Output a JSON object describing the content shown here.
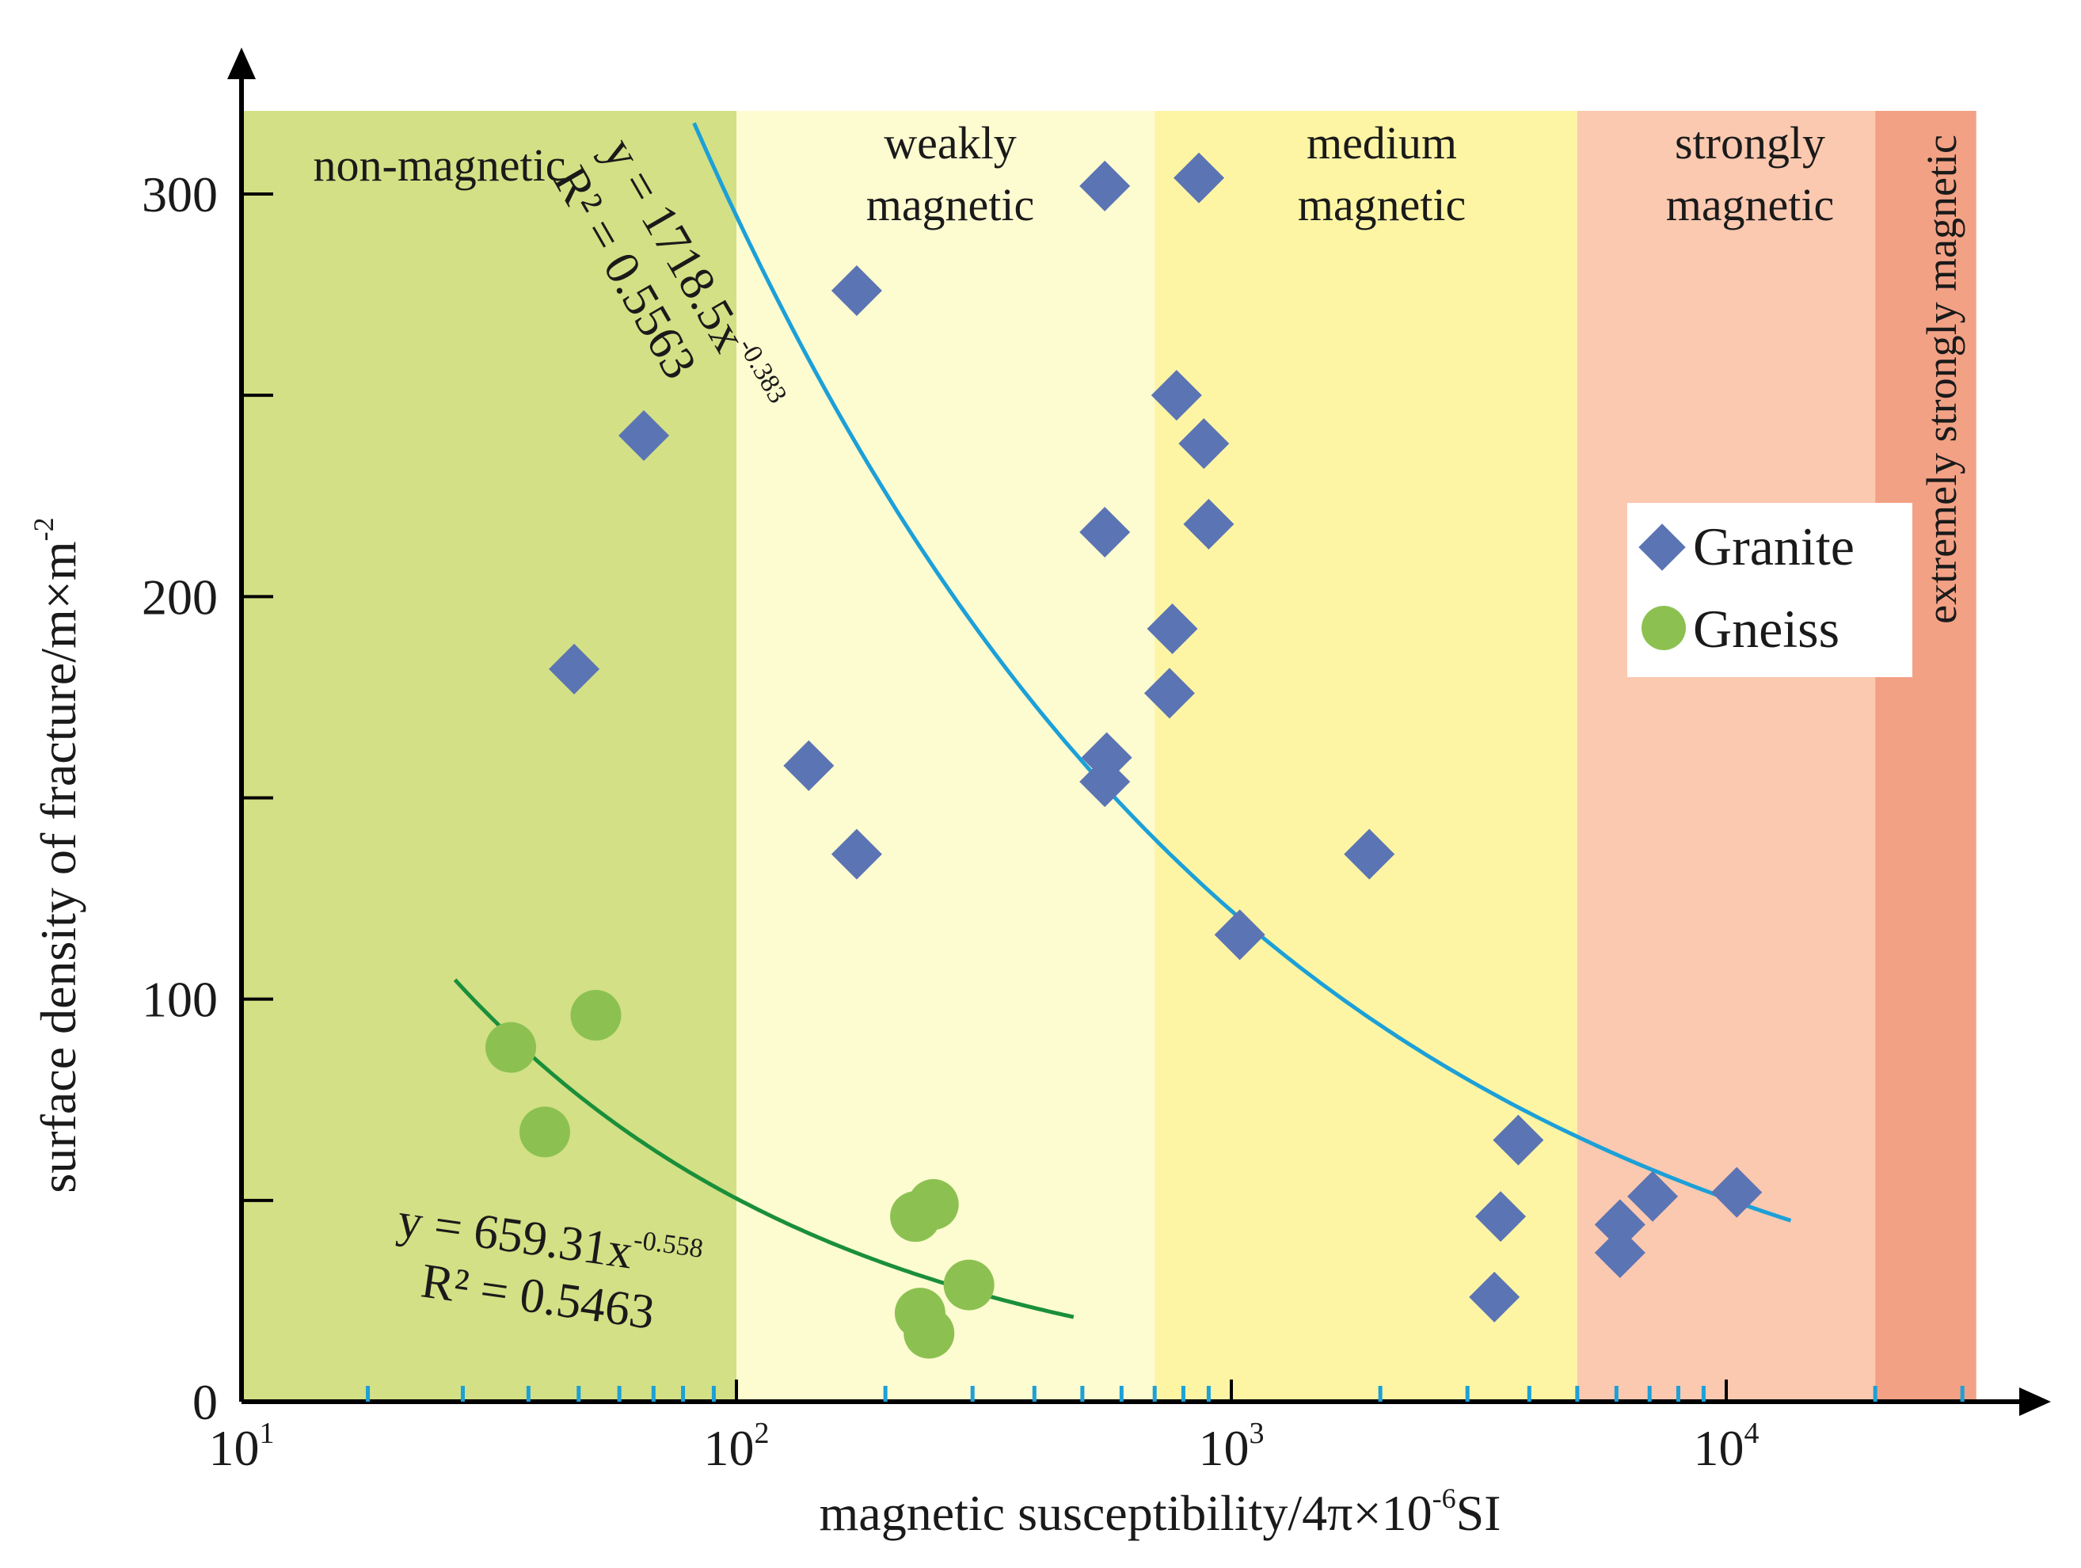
{
  "colors": {
    "zone_non": "#d3e085",
    "zone_weak": "#fdfbd0",
    "zone_medium": "#fdf5a4",
    "zone_strong": "#fbc9b0",
    "zone_extreme": "#f2a185",
    "granite": "#5b74b3",
    "gneiss": "#8cc152",
    "fit_granite": "#1ca0d7",
    "fit_gneiss": "#1a8f3a",
    "axis": "#000000",
    "minor_tick": "#1ca0d7"
  },
  "chart_data": {
    "type": "scatter",
    "xscale": "log",
    "xlim": [
      10,
      32000
    ],
    "ylim": [
      0,
      320
    ],
    "xlabel": "magnetic susceptibility/4π×10",
    "xlabel_exp": "-6",
    "xlabel_unit": "SI",
    "ylabel": "surface density of fracture/m×m",
    "ylabel_exp": "-2",
    "x_ticks": [
      {
        "value": 10,
        "base": "10",
        "exp": "1"
      },
      {
        "value": 100,
        "base": "10",
        "exp": "2"
      },
      {
        "value": 1000,
        "base": "10",
        "exp": "3"
      },
      {
        "value": 10000,
        "base": "10",
        "exp": "4"
      }
    ],
    "x_minor_ticks": [
      18,
      28,
      38,
      48,
      58,
      68,
      78,
      90,
      200,
      300,
      400,
      500,
      600,
      700,
      800,
      900,
      2000,
      3000,
      4000,
      5000,
      6000,
      7000,
      8000,
      9000,
      20000,
      30000
    ],
    "y_ticks": [
      {
        "value": 0,
        "label": "0"
      },
      {
        "value": 50,
        "label": ""
      },
      {
        "value": 100,
        "label": "100"
      },
      {
        "value": 150,
        "label": ""
      },
      {
        "value": 200,
        "label": "200"
      },
      {
        "value": 250,
        "label": ""
      },
      {
        "value": 300,
        "label": "300"
      }
    ],
    "zones": [
      {
        "name": "non-magnetic",
        "from": 10,
        "to": 100,
        "color_key": "zone_non",
        "label_lines": [
          "non-magnetic"
        ]
      },
      {
        "name": "weakly magnetic",
        "from": 100,
        "to": 700,
        "color_key": "zone_weak",
        "label_lines": [
          "weakly",
          "magnetic"
        ]
      },
      {
        "name": "medium magnetic",
        "from": 700,
        "to": 5000,
        "color_key": "zone_medium",
        "label_lines": [
          "medium",
          "magnetic"
        ]
      },
      {
        "name": "strongly magnetic",
        "from": 5000,
        "to": 20000,
        "color_key": "zone_strong",
        "label_lines": [
          "strongly",
          "magnetic"
        ]
      },
      {
        "name": "extremely strongly magnetic",
        "from": 20000,
        "to": 32000,
        "color_key": "zone_extreme",
        "label_lines": [
          "extremely strongly magnetic"
        ]
      }
    ],
    "series": [
      {
        "name": "Granite",
        "marker": "diamond",
        "color_key": "granite",
        "points": [
          {
            "x": 47,
            "y": 182
          },
          {
            "x": 65,
            "y": 240
          },
          {
            "x": 140,
            "y": 158
          },
          {
            "x": 175,
            "y": 276
          },
          {
            "x": 175,
            "y": 136
          },
          {
            "x": 555,
            "y": 302
          },
          {
            "x": 555,
            "y": 216
          },
          {
            "x": 560,
            "y": 160
          },
          {
            "x": 555,
            "y": 154
          },
          {
            "x": 860,
            "y": 304
          },
          {
            "x": 775,
            "y": 250
          },
          {
            "x": 880,
            "y": 238
          },
          {
            "x": 900,
            "y": 218
          },
          {
            "x": 760,
            "y": 192
          },
          {
            "x": 750,
            "y": 176
          },
          {
            "x": 1900,
            "y": 136
          },
          {
            "x": 1040,
            "y": 116
          },
          {
            "x": 3800,
            "y": 65
          },
          {
            "x": 3500,
            "y": 46
          },
          {
            "x": 3400,
            "y": 26
          },
          {
            "x": 6100,
            "y": 44
          },
          {
            "x": 6100,
            "y": 37
          },
          {
            "x": 7100,
            "y": 51
          },
          {
            "x": 10500,
            "y": 52
          }
        ]
      },
      {
        "name": "Gneiss",
        "marker": "circle",
        "color_key": "gneiss",
        "points": [
          {
            "x": 35,
            "y": 88
          },
          {
            "x": 52,
            "y": 96
          },
          {
            "x": 41,
            "y": 67
          },
          {
            "x": 230,
            "y": 46
          },
          {
            "x": 250,
            "y": 49
          },
          {
            "x": 295,
            "y": 29
          },
          {
            "x": 235,
            "y": 22
          },
          {
            "x": 245,
            "y": 17
          }
        ]
      }
    ],
    "fits": [
      {
        "series": "Granite",
        "a": 1718.5,
        "b": -0.383,
        "x_range": [
          78,
          13500
        ],
        "r2": "0.5563",
        "color_key": "fit_granite"
      },
      {
        "series": "Gneiss",
        "a": 659.31,
        "b": -0.558,
        "x_range": [
          27,
          480
        ],
        "r2": "0.5463",
        "color_key": "fit_gneiss"
      }
    ],
    "annotations": {
      "granite_eq": "y = 1718.5x",
      "granite_exp": "-0.383",
      "granite_r2": "R² = 0.5563",
      "gneiss_eq": "y = 659.31x",
      "gneiss_exp": "-0.558",
      "gneiss_r2": "R² = 0.5463"
    },
    "legend": {
      "position": "right",
      "entries": [
        "Granite",
        "Gneiss"
      ]
    }
  }
}
